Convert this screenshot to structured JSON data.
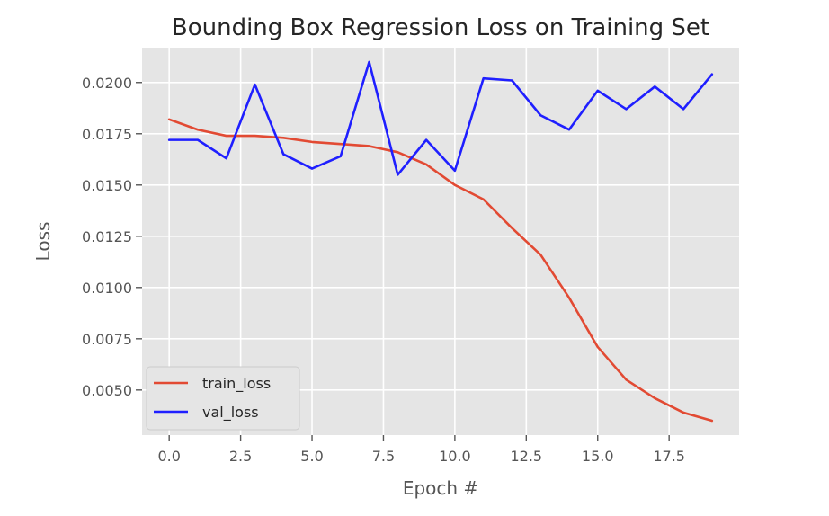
{
  "chart_data": {
    "type": "line",
    "title": "Bounding Box Regression Loss on Training Set",
    "xlabel": "Epoch #",
    "ylabel": "Loss",
    "xlim": [
      -0.95,
      19.95
    ],
    "ylim": [
      0.0028,
      0.0217
    ],
    "xticks": [
      0.0,
      2.5,
      5.0,
      7.5,
      10.0,
      12.5,
      15.0,
      17.5
    ],
    "xtick_labels": [
      "0.0",
      "2.5",
      "5.0",
      "7.5",
      "10.0",
      "12.5",
      "15.0",
      "17.5"
    ],
    "yticks": [
      0.005,
      0.0075,
      0.01,
      0.0125,
      0.015,
      0.0175,
      0.02
    ],
    "ytick_labels": [
      "0.0050",
      "0.0075",
      "0.0100",
      "0.0125",
      "0.0150",
      "0.0175",
      "0.0200"
    ],
    "grid": true,
    "legend_position": "lower-left",
    "x": [
      0,
      1,
      2,
      3,
      4,
      5,
      6,
      7,
      8,
      9,
      10,
      11,
      12,
      13,
      14,
      15,
      16,
      17,
      18,
      19
    ],
    "series": [
      {
        "name": "train_loss",
        "color": "#e24a33",
        "values": [
          0.0182,
          0.0177,
          0.0174,
          0.0174,
          0.0173,
          0.0171,
          0.017,
          0.0169,
          0.0166,
          0.016,
          0.015,
          0.0143,
          0.0129,
          0.0116,
          0.0095,
          0.0071,
          0.0055,
          0.0046,
          0.0039,
          0.0035
        ]
      },
      {
        "name": "val_loss",
        "color": "#1f1fff",
        "values": [
          0.0172,
          0.0172,
          0.0163,
          0.0199,
          0.0165,
          0.0158,
          0.0164,
          0.021,
          0.0155,
          0.0172,
          0.0157,
          0.0202,
          0.0201,
          0.0184,
          0.0177,
          0.0196,
          0.0187,
          0.0198,
          0.0187,
          0.0204
        ]
      }
    ]
  },
  "colors": {
    "plot_background": "#e5e5e5",
    "grid": "#ffffff"
  }
}
